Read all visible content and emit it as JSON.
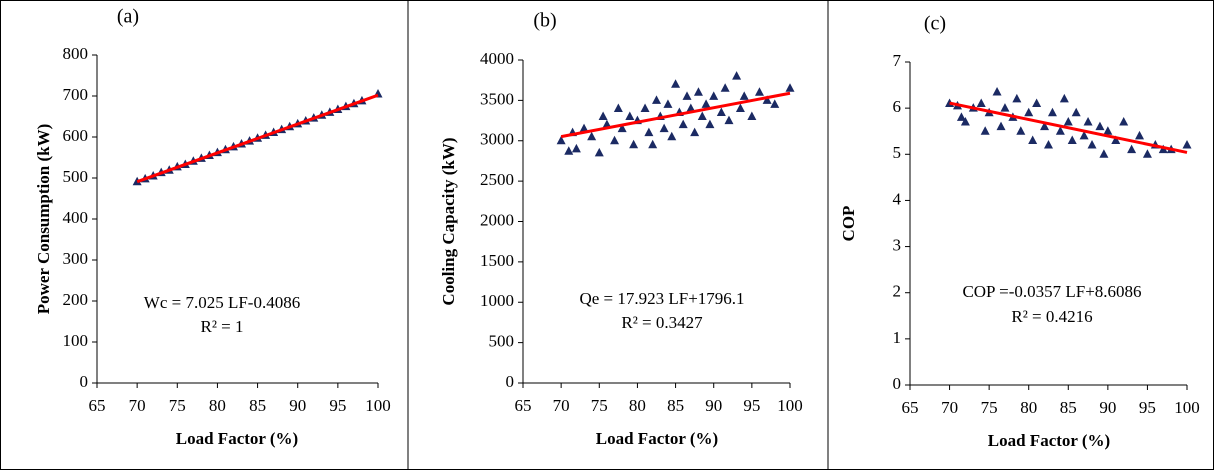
{
  "chart_data": [
    {
      "type": "scatter",
      "title": "(a)",
      "x_label": "Load Factor (%)",
      "y_label": "Power Consumption (kW)",
      "annotations": [
        "Wc = 7.025 LF-0.4086",
        "R² = 1"
      ],
      "xlim": [
        65,
        100
      ],
      "xticks": [
        65,
        70,
        75,
        80,
        85,
        90,
        95,
        100
      ],
      "ylim": [
        0,
        800
      ],
      "yticks": [
        0,
        100,
        200,
        300,
        400,
        500,
        600,
        700,
        800
      ],
      "series": [
        {
          "mode": "markers",
          "color": "#1b2a63",
          "x": [
            70,
            71,
            72,
            73,
            74,
            75,
            76,
            77,
            78,
            79,
            80,
            81,
            82,
            83,
            84,
            85,
            86,
            87,
            88,
            89,
            90,
            91,
            92,
            93,
            94,
            95,
            96,
            97,
            98,
            100
          ],
          "values": [
            491,
            498,
            505,
            513,
            519,
            527,
            533,
            541,
            548,
            555,
            562,
            569,
            576,
            583,
            590,
            597,
            604,
            611,
            618,
            625,
            632,
            639,
            646,
            653,
            660,
            667,
            674,
            681,
            688,
            705
          ]
        },
        {
          "mode": "line",
          "color": "#ff0000",
          "x": [
            70,
            100
          ],
          "values": [
            491,
            702
          ]
        }
      ]
    },
    {
      "type": "scatter",
      "title": "(b)",
      "x_label": "Load Factor (%)",
      "y_label": "Cooling Capacity (kW)",
      "annotations": [
        "Qe = 17.923 LF+1796.1",
        "R² = 0.3427"
      ],
      "xlim": [
        65,
        100
      ],
      "xticks": [
        65,
        70,
        75,
        80,
        85,
        90,
        95,
        100
      ],
      "ylim": [
        0,
        4000
      ],
      "yticks": [
        0,
        500,
        1000,
        1500,
        2000,
        2500,
        3000,
        3500,
        4000
      ],
      "series": [
        {
          "mode": "markers",
          "color": "#1b2a63",
          "x": [
            70,
            71,
            71.5,
            72,
            73,
            74,
            75,
            75.5,
            76,
            77,
            77.5,
            78,
            79,
            79.5,
            80,
            81,
            81.5,
            82,
            82.5,
            83,
            83.5,
            84,
            84.5,
            85,
            85.5,
            86,
            86.5,
            87,
            87.5,
            88,
            88.5,
            89,
            89.5,
            90,
            91,
            91.5,
            92,
            93,
            93.5,
            94,
            95,
            96,
            97,
            98,
            100
          ],
          "values": [
            3000,
            2870,
            3100,
            2900,
            3150,
            3050,
            2850,
            3300,
            3200,
            3000,
            3400,
            3150,
            3300,
            2950,
            3250,
            3400,
            3100,
            2950,
            3500,
            3300,
            3150,
            3450,
            3050,
            3700,
            3350,
            3200,
            3550,
            3400,
            3100,
            3600,
            3300,
            3450,
            3200,
            3550,
            3350,
            3650,
            3250,
            3800,
            3400,
            3550,
            3300,
            3600,
            3500,
            3450,
            3650
          ]
        },
        {
          "mode": "line",
          "color": "#ff0000",
          "x": [
            70,
            100
          ],
          "values": [
            3051,
            3588
          ]
        }
      ]
    },
    {
      "type": "scatter",
      "title": "(c)",
      "x_label": "Load Factor (%)",
      "y_label": "COP",
      "annotations": [
        "COP =-0.0357 LF+8.6086",
        "R² = 0.4216"
      ],
      "xlim": [
        65,
        100
      ],
      "xticks": [
        65,
        70,
        75,
        80,
        85,
        90,
        95,
        100
      ],
      "ylim": [
        0,
        7
      ],
      "yticks": [
        0,
        1,
        2,
        3,
        4,
        5,
        6,
        7
      ],
      "series": [
        {
          "mode": "markers",
          "color": "#1b2a63",
          "x": [
            70,
            71,
            71.5,
            72,
            73,
            74,
            74.5,
            75,
            76,
            76.5,
            77,
            78,
            78.5,
            79,
            80,
            80.5,
            81,
            82,
            82.5,
            83,
            84,
            84.5,
            85,
            85.5,
            86,
            87,
            87.5,
            88,
            89,
            89.5,
            90,
            91,
            92,
            93,
            94,
            95,
            96,
            97,
            98,
            100
          ],
          "values": [
            6.1,
            6.05,
            5.8,
            5.7,
            6.0,
            6.1,
            5.5,
            5.9,
            6.35,
            5.6,
            6.0,
            5.8,
            6.2,
            5.5,
            5.9,
            5.3,
            6.1,
            5.6,
            5.2,
            5.9,
            5.5,
            6.2,
            5.7,
            5.3,
            5.9,
            5.4,
            5.7,
            5.2,
            5.6,
            5.0,
            5.5,
            5.3,
            5.7,
            5.1,
            5.4,
            5.0,
            5.2,
            5.1,
            5.1,
            5.2
          ]
        },
        {
          "mode": "line",
          "color": "#ff0000",
          "x": [
            70,
            100
          ],
          "values": [
            6.11,
            5.04
          ]
        }
      ]
    }
  ]
}
